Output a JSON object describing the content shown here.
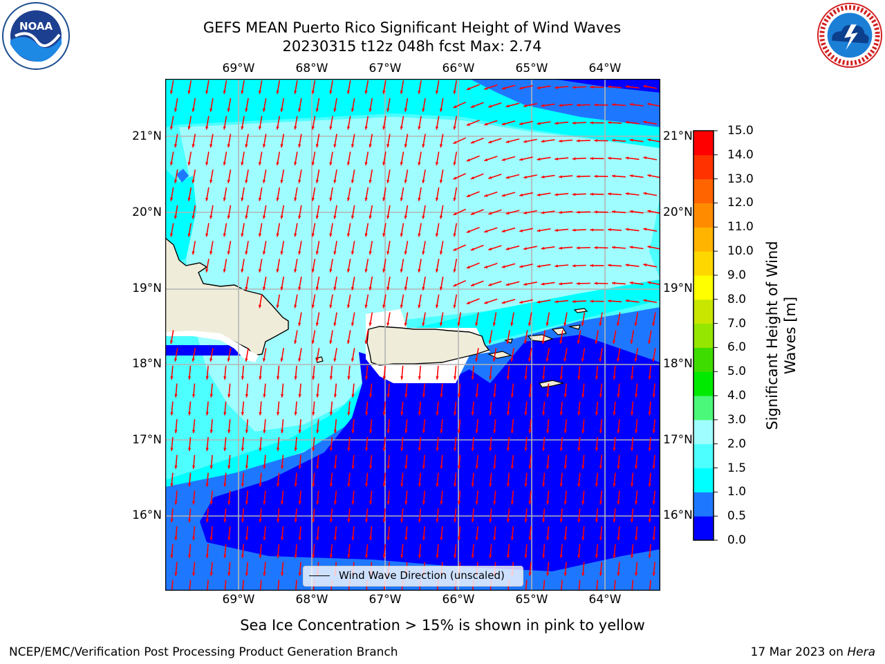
{
  "title_line1": "GEFS MEAN Puerto Rico Significant Height of Wind Waves",
  "title_line2": "20230315 t12z 048h fcst   Max: 2.74",
  "map": {
    "lon_labels": [
      "69°W",
      "68°W",
      "67°W",
      "66°W",
      "65°W",
      "64°W"
    ],
    "lat_labels": [
      "21°N",
      "20°N",
      "19°N",
      "18°N",
      "17°N",
      "16°N"
    ],
    "lon_range": [
      -70.0,
      -63.3
    ],
    "lat_range": [
      15.0,
      21.75
    ],
    "wind_wave_direction": "mostly from north-northeast, blowing south-southwest",
    "max_value": 2.74
  },
  "legend": {
    "label": "Wind Wave Direction (unscaled)"
  },
  "colorbar": {
    "label": "Significant Height of Wind Waves [m]",
    "ticks": [
      "15.0",
      "14.0",
      "13.0",
      "12.0",
      "11.0",
      "10.0",
      "9.0",
      "8.0",
      "7.0",
      "6.0",
      "5.0",
      "4.0",
      "3.0",
      "2.0",
      "1.5",
      "1.0",
      "0.5",
      "0.0"
    ],
    "colors": [
      "#0000ff",
      "#1e78ff",
      "#00ffff",
      "#4dffff",
      "#9ffdff",
      "#4bf87a",
      "#00ea00",
      "#3fdc00",
      "#95e600",
      "#c8e600",
      "#ffff00",
      "#ffd700",
      "#ffb400",
      "#ff8c00",
      "#ff6400",
      "#ff3200",
      "#ff0000"
    ],
    "unit": "m"
  },
  "caption": "Sea Ice Concentration > 15% is shown in pink to yellow",
  "footer_left": "NCEP/EMC/Verification Post Processing Product Generation Branch",
  "footer_right_prefix": "17 Mar 2023 on ",
  "footer_right_host": "Hera",
  "logos": {
    "left_text": "NOAA",
    "left_icon": "noaa-logo",
    "right_icon": "nws-logo"
  },
  "colors": {
    "arrow": "#ff0000",
    "land": "#efedd9",
    "grid": "#b4b4b4"
  }
}
